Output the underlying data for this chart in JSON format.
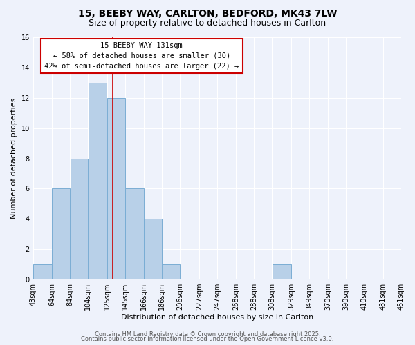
{
  "title": "15, BEEBY WAY, CARLTON, BEDFORD, MK43 7LW",
  "subtitle": "Size of property relative to detached houses in Carlton",
  "xlabel": "Distribution of detached houses by size in Carlton",
  "ylabel": "Number of detached properties",
  "bar_color": "#b8d0e8",
  "bar_edge_color": "#7aadd4",
  "background_color": "#eef2fb",
  "grid_color": "#ffffff",
  "bin_labels": [
    "43sqm",
    "64sqm",
    "84sqm",
    "104sqm",
    "125sqm",
    "145sqm",
    "166sqm",
    "186sqm",
    "206sqm",
    "227sqm",
    "247sqm",
    "268sqm",
    "288sqm",
    "308sqm",
    "329sqm",
    "349sqm",
    "370sqm",
    "390sqm",
    "410sqm",
    "431sqm",
    "451sqm"
  ],
  "bin_edges": [
    43,
    64,
    84,
    104,
    125,
    145,
    166,
    186,
    206,
    227,
    247,
    268,
    288,
    308,
    329,
    349,
    370,
    390,
    410,
    431,
    451
  ],
  "counts": [
    1,
    6,
    8,
    13,
    12,
    6,
    4,
    1,
    0,
    0,
    0,
    0,
    0,
    1,
    0,
    0,
    0,
    0,
    0,
    0
  ],
  "property_size": 131,
  "property_label": "15 BEEBY WAY 131sqm",
  "annotation_line1": "← 58% of detached houses are smaller (30)",
  "annotation_line2": "42% of semi-detached houses are larger (22) →",
  "annotation_box_color": "#ffffff",
  "annotation_box_edge_color": "#cc0000",
  "vline_color": "#cc0000",
  "ylim": [
    0,
    16
  ],
  "yticks": [
    0,
    2,
    4,
    6,
    8,
    10,
    12,
    14,
    16
  ],
  "footer_line1": "Contains HM Land Registry data © Crown copyright and database right 2025.",
  "footer_line2": "Contains public sector information licensed under the Open Government Licence v3.0.",
  "title_fontsize": 10,
  "subtitle_fontsize": 9,
  "axis_label_fontsize": 8,
  "tick_fontsize": 7,
  "annotation_fontsize": 7.5,
  "footer_fontsize": 6
}
